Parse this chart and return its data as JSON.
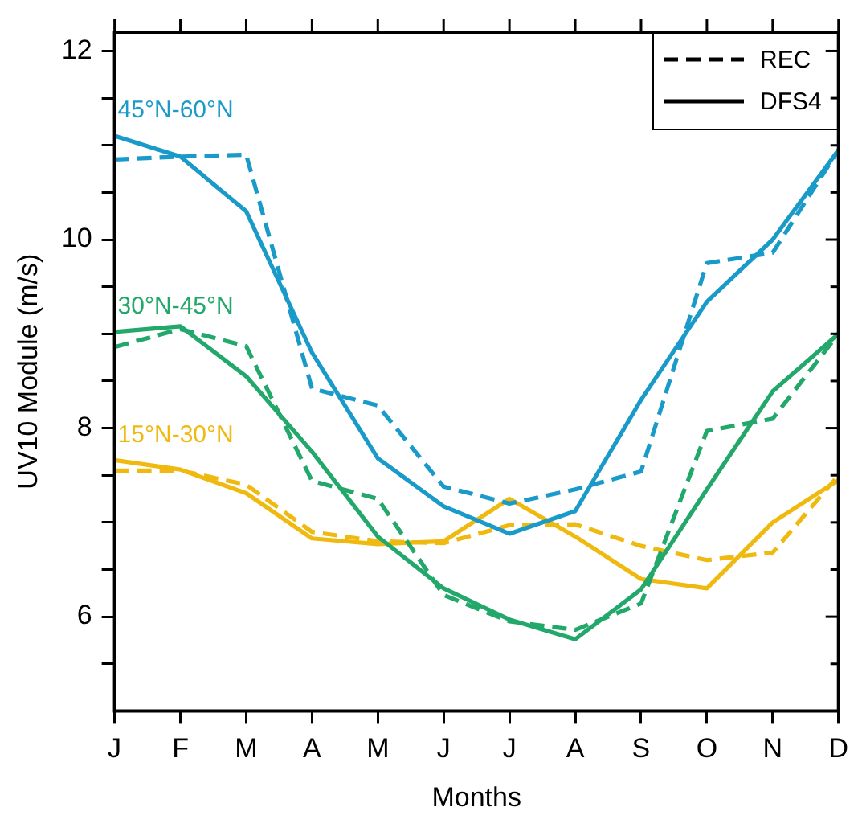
{
  "chart_data": {
    "type": "line",
    "xlabel": "Months",
    "ylabel": "UV10 Module (m/s)",
    "categories": [
      "J",
      "F",
      "M",
      "A",
      "M",
      "J",
      "J",
      "A",
      "S",
      "O",
      "N",
      "D"
    ],
    "series": [
      {
        "color": "#1a9ac9",
        "line_style": "dashed",
        "values": [
          10.85,
          10.88,
          10.9,
          8.42,
          8.24,
          7.38,
          7.2,
          7.35,
          7.54,
          9.75,
          9.86,
          10.95
        ]
      },
      {
        "name": "45°N-60°N",
        "color": "#1a9ac9",
        "line_style": "solid",
        "values": [
          11.1,
          10.88,
          10.3,
          8.8,
          7.68,
          7.17,
          6.88,
          7.12,
          8.3,
          9.34,
          10.0,
          10.95
        ]
      },
      {
        "color": "#22a86a",
        "line_style": "dashed",
        "values": [
          8.86,
          9.05,
          8.87,
          7.44,
          7.25,
          6.23,
          5.95,
          5.86,
          6.14,
          7.97,
          8.1,
          9.0
        ]
      },
      {
        "name": "30°N-45°N",
        "color": "#22a86a",
        "line_style": "solid",
        "values": [
          9.02,
          9.08,
          8.55,
          7.75,
          6.85,
          6.3,
          5.97,
          5.76,
          6.29,
          7.35,
          8.39,
          9.0
        ]
      },
      {
        "color": "#f0b90f",
        "line_style": "dashed",
        "values": [
          7.55,
          7.55,
          7.4,
          6.9,
          6.8,
          6.78,
          6.97,
          6.98,
          6.75,
          6.6,
          6.68,
          7.5
        ]
      },
      {
        "name": "15°N-30°N",
        "color": "#f0b90f",
        "line_style": "solid",
        "values": [
          7.66,
          7.56,
          7.31,
          6.83,
          6.77,
          6.8,
          7.25,
          6.85,
          6.4,
          6.3,
          7.0,
          7.45
        ]
      }
    ],
    "annotations": [
      "REC",
      "DFS4"
    ],
    "ylim": [
      5,
      12.2
    ],
    "yticks": [
      {
        "value": 5.5,
        "label": null
      },
      {
        "value": 6,
        "label": "6"
      },
      {
        "value": 6.5,
        "label": null
      },
      {
        "value": 7,
        "label": null
      },
      {
        "value": 7.5,
        "label": null
      },
      {
        "value": 8,
        "label": "8"
      },
      {
        "value": 8.5,
        "label": null
      },
      {
        "value": 9,
        "label": null
      },
      {
        "value": 9.5,
        "label": null
      },
      {
        "value": 10,
        "label": "10"
      },
      {
        "value": 10.5,
        "label": null
      },
      {
        "value": 11,
        "label": null
      },
      {
        "value": 11.5,
        "label": null
      },
      {
        "value": 12,
        "label": "12"
      }
    ],
    "grid": false,
    "marker": "none"
  }
}
